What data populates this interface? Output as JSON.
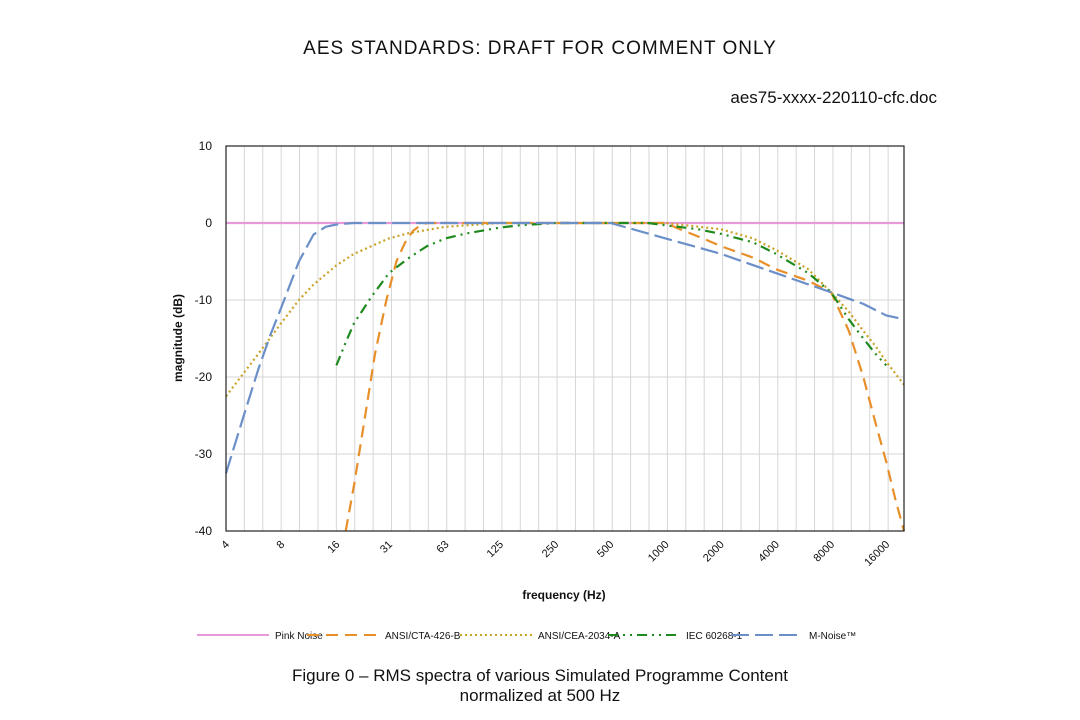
{
  "header": {
    "title": "AES STANDARDS: DRAFT FOR COMMENT ONLY",
    "doc_id": "aes75-xxxx-220110-cfc.doc"
  },
  "caption": {
    "line1": "Figure 0 – RMS spectra of various Simulated Programme Content",
    "line2": "normalized at 500 Hz"
  },
  "chart_data": {
    "type": "line",
    "xlabel": "frequency (Hz)",
    "ylabel": "magnitude (dB)",
    "x_scale": "log2",
    "xlim": [
      4,
      20000
    ],
    "ylim": [
      -40,
      10
    ],
    "xticks": [
      4,
      8,
      16,
      31,
      63,
      125,
      250,
      500,
      1000,
      2000,
      4000,
      8000,
      16000
    ],
    "yticks": [
      10,
      0,
      -10,
      -20,
      -30,
      -40
    ],
    "grid": true,
    "legend_position": "bottom",
    "series": [
      {
        "name": "Pink Noise",
        "color": "#e89ad8",
        "dash": "solid",
        "x": [
          4,
          20000
        ],
        "y": [
          0,
          0
        ]
      },
      {
        "name": "ANSI/CTA-426-B",
        "color": "#e88f2a",
        "dash": "dashed",
        "x": [
          18,
          20,
          23,
          26,
          30,
          34,
          38,
          42,
          46,
          50,
          63,
          125,
          250,
          500,
          1000,
          1200,
          1600,
          2000,
          3000,
          4000,
          6000,
          8000,
          10000,
          12000,
          14000,
          16000,
          18000,
          20000
        ],
        "y": [
          -40,
          -34,
          -25,
          -17,
          -10,
          -5,
          -2.5,
          -1,
          -0.3,
          0,
          0,
          0,
          0,
          0,
          0,
          -0.8,
          -2,
          -3,
          -4.5,
          -6,
          -7.5,
          -9,
          -14,
          -20,
          -26,
          -31,
          -36,
          -40
        ]
      },
      {
        "name": "ANSI/CEA-2034-A",
        "color": "#c9a227",
        "dash": "dotted",
        "x": [
          4,
          6,
          8,
          10,
          12,
          16,
          20,
          31,
          40,
          63,
          125,
          250,
          500,
          1000,
          2000,
          3000,
          4000,
          6000,
          8000,
          10000,
          12000,
          14000,
          16000,
          20000
        ],
        "y": [
          -22.5,
          -17,
          -13,
          -10,
          -8,
          -5.5,
          -4,
          -2,
          -1.3,
          -0.5,
          0,
          0,
          0,
          0,
          -0.8,
          -2,
          -3.5,
          -6,
          -9,
          -11.5,
          -14,
          -16,
          -18,
          -21
        ]
      },
      {
        "name": "IEC 60268-1",
        "color": "#1e8a1e",
        "dash": "dashdotdot",
        "x": [
          16,
          18,
          20,
          25,
          31,
          40,
          50,
          63,
          80,
          100,
          125,
          160,
          250,
          500,
          800,
          1000,
          1500,
          2000,
          3000,
          4000,
          6000,
          8000,
          10000,
          12000,
          14000,
          16000
        ],
        "y": [
          -18.5,
          -15.5,
          -13,
          -9.5,
          -6.5,
          -4.5,
          -3,
          -2,
          -1.4,
          -1,
          -0.6,
          -0.3,
          0,
          0,
          0,
          -0.3,
          -0.8,
          -1.4,
          -2.5,
          -4,
          -6.5,
          -9,
          -12.5,
          -15,
          -17,
          -18.5
        ]
      },
      {
        "name": "M-Noise™",
        "color": "#6b8fc9",
        "dash": "longdash",
        "x": [
          4,
          5,
          6,
          7,
          8,
          10,
          12,
          14,
          16,
          20,
          31,
          63,
          125,
          250,
          500,
          1000,
          2000,
          4000,
          8000,
          12000,
          16000,
          20000
        ],
        "y": [
          -32.5,
          -25,
          -19,
          -14.5,
          -11,
          -5,
          -1.5,
          -0.5,
          -0.2,
          0,
          0,
          0,
          0,
          0,
          0,
          -2,
          -4,
          -6.5,
          -9,
          -10.5,
          -12,
          -12.5
        ]
      }
    ]
  }
}
